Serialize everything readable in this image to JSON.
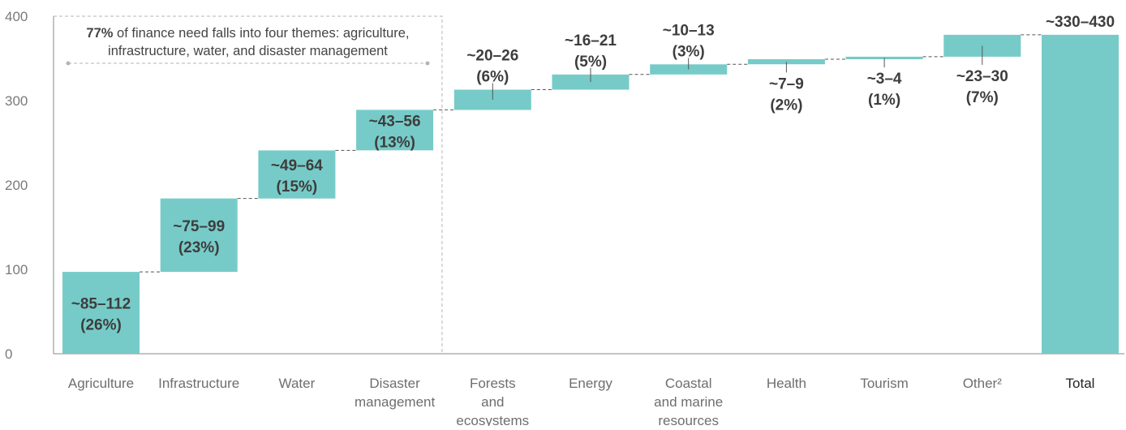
{
  "chart_data": {
    "type": "waterfall",
    "ylim": [
      0,
      400
    ],
    "yticks": [
      0,
      100,
      200,
      300,
      400
    ],
    "grid": false,
    "bar_color": "#76cbc8",
    "categories": [
      {
        "label": [
          "Agriculture"
        ],
        "low": 85,
        "high": 112,
        "base": 0,
        "value": 97,
        "range_label": "~85–112",
        "share_label": "(26%)"
      },
      {
        "label": [
          "Infrastructure"
        ],
        "low": 75,
        "high": 99,
        "base": 97,
        "value": 87,
        "range_label": "~75–99",
        "share_label": "(23%)"
      },
      {
        "label": [
          "Water"
        ],
        "low": 49,
        "high": 64,
        "base": 184,
        "value": 57,
        "range_label": "~49–64",
        "share_label": "(15%)"
      },
      {
        "label": [
          "Disaster",
          "management"
        ],
        "low": 43,
        "high": 56,
        "base": 241,
        "value": 48,
        "range_label": "~43–56",
        "share_label": "(13%)"
      },
      {
        "label": [
          "Forests",
          "and",
          "ecosystems"
        ],
        "low": 20,
        "high": 26,
        "base": 289,
        "value": 24,
        "range_label": "~20–26",
        "share_label": "(6%)"
      },
      {
        "label": [
          "Energy"
        ],
        "low": 16,
        "high": 21,
        "base": 313,
        "value": 18,
        "range_label": "~16–21",
        "share_label": "(5%)"
      },
      {
        "label": [
          "Coastal",
          "and marine",
          "resources"
        ],
        "low": 10,
        "high": 13,
        "base": 331,
        "value": 12,
        "range_label": "~10–13",
        "share_label": "(3%)"
      },
      {
        "label": [
          "Health"
        ],
        "low": 7,
        "high": 9,
        "base": 343,
        "value": 6,
        "range_label": "~7–9",
        "share_label": "(2%)"
      },
      {
        "label": [
          "Tourism"
        ],
        "low": 3,
        "high": 4,
        "base": 349,
        "value": 3,
        "range_label": "~3–4",
        "share_label": "(1%)"
      },
      {
        "label": [
          "Other²"
        ],
        "low": 23,
        "high": 30,
        "base": 352,
        "value": 26,
        "range_label": "~23–30",
        "share_label": "(7%)"
      },
      {
        "label": [
          "Total"
        ],
        "low": 330,
        "high": 430,
        "base": 0,
        "value": 378,
        "range_label": "~330–430",
        "share_label": "",
        "is_total": true
      }
    ],
    "annotation": {
      "bold": "77%",
      "line1": " of finance need falls into four themes: agriculture,",
      "line2": "infrastructure, water, and disaster management",
      "spans_categories": [
        0,
        3
      ]
    }
  }
}
